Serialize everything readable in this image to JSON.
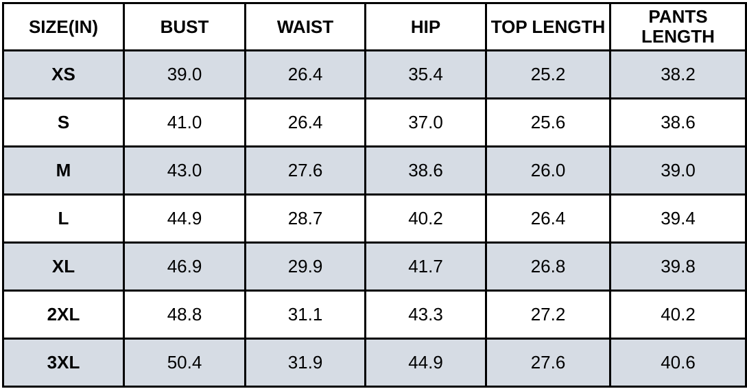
{
  "table": {
    "title": "size-chart",
    "unit_note": "SIZE(IN)",
    "columns": [
      "SIZE(IN)",
      "BUST",
      "WAIST",
      "HIP",
      "TOP LENGTH",
      "PANTS LENGTH"
    ],
    "rows": [
      {
        "size": "XS",
        "values": [
          "39.0",
          "26.4",
          "35.4",
          "25.2",
          "38.2"
        ]
      },
      {
        "size": "S",
        "values": [
          "41.0",
          "26.4",
          "37.0",
          "25.6",
          "38.6"
        ]
      },
      {
        "size": "M",
        "values": [
          "43.0",
          "27.6",
          "38.6",
          "26.0",
          "39.0"
        ]
      },
      {
        "size": "L",
        "values": [
          "44.9",
          "28.7",
          "40.2",
          "26.4",
          "39.4"
        ]
      },
      {
        "size": "XL",
        "values": [
          "46.9",
          "29.9",
          "41.7",
          "26.8",
          "39.8"
        ]
      },
      {
        "size": "2XL",
        "values": [
          "48.8",
          "31.1",
          "43.3",
          "27.2",
          "40.2"
        ]
      },
      {
        "size": "3XL",
        "values": [
          "50.4",
          "31.9",
          "44.9",
          "27.6",
          "40.6"
        ]
      }
    ],
    "shaded_row_indices": [
      0,
      2,
      4,
      6
    ],
    "colors": {
      "row_shade": "#d6dce4",
      "row_plain": "#ffffff",
      "border": "#000000",
      "text": "#000000"
    }
  }
}
